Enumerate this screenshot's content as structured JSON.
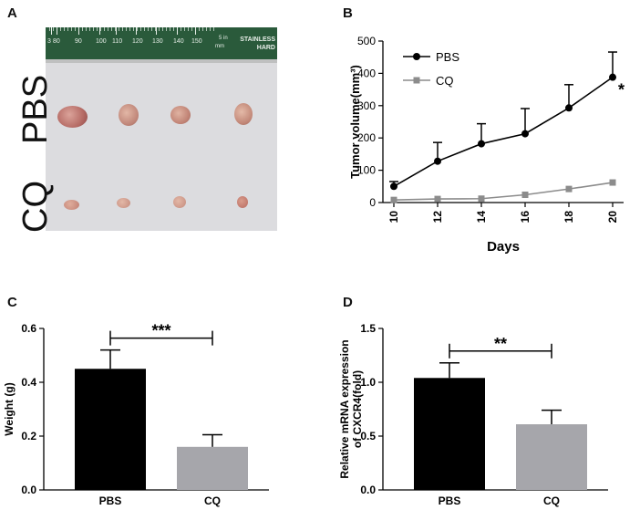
{
  "panels": {
    "a": "A",
    "b": "B",
    "c": "C",
    "d": "D"
  },
  "photo": {
    "row_labels": [
      "PBS",
      "CQ"
    ],
    "ruler_numbers": [
      "3",
      "80",
      "90",
      "100",
      "110",
      "120",
      "130",
      "140",
      "150"
    ],
    "ruler_unit_mm": "mm",
    "ruler_unit_in": "5 in",
    "ruler_brand": "STAINLESS",
    "ruler_brand2": "HARD"
  },
  "colors": {
    "pbs": "#000000",
    "cq": "#a6a6ab"
  },
  "chart_data": [
    {
      "panel": "B",
      "type": "line",
      "xlabel": "Days",
      "ylabel": "Tumor volume(mm³)",
      "x": [
        10,
        12,
        14,
        16,
        18,
        20
      ],
      "xticks": [
        "10",
        "12",
        "14",
        "16",
        "18",
        "20"
      ],
      "xlim": [
        9.5,
        20.5
      ],
      "ylim": [
        0,
        500
      ],
      "yticks": [
        "0",
        "100",
        "200",
        "300",
        "400",
        "500"
      ],
      "series": [
        {
          "name": "PBS",
          "values": [
            50,
            128,
            182,
            213,
            293,
            388
          ],
          "error": [
            15,
            58,
            62,
            78,
            72,
            78
          ],
          "marker": "circle",
          "color": "#000000"
        },
        {
          "name": "CQ",
          "values": [
            8,
            11,
            12,
            24,
            42,
            62
          ],
          "error": [
            0,
            0,
            0,
            0,
            0,
            0
          ],
          "marker": "square",
          "color": "#8c8c8c"
        }
      ],
      "legend": "top-left",
      "annotations": [
        "*"
      ]
    },
    {
      "panel": "C",
      "type": "bar",
      "ylabel": "Weight (g)",
      "categories": [
        "PBS",
        "CQ"
      ],
      "values": [
        0.45,
        0.16
      ],
      "error": [
        0.07,
        0.045
      ],
      "ylim": [
        0,
        0.6
      ],
      "yticks": [
        "0.0",
        "0.2",
        "0.4",
        "0.6"
      ],
      "colors": [
        "#000000",
        "#a6a6ab"
      ],
      "significance": "***"
    },
    {
      "panel": "D",
      "type": "bar",
      "ylabel_lines": [
        "Relative mRNA expression",
        "of CXCR4(fold)"
      ],
      "categories": [
        "PBS",
        "CQ"
      ],
      "values": [
        1.04,
        0.61
      ],
      "error": [
        0.14,
        0.13
      ],
      "ylim": [
        0,
        1.5
      ],
      "yticks": [
        "0.0",
        "0.5",
        "1.0",
        "1.5"
      ],
      "colors": [
        "#000000",
        "#a6a6ab"
      ],
      "significance": "**"
    }
  ]
}
